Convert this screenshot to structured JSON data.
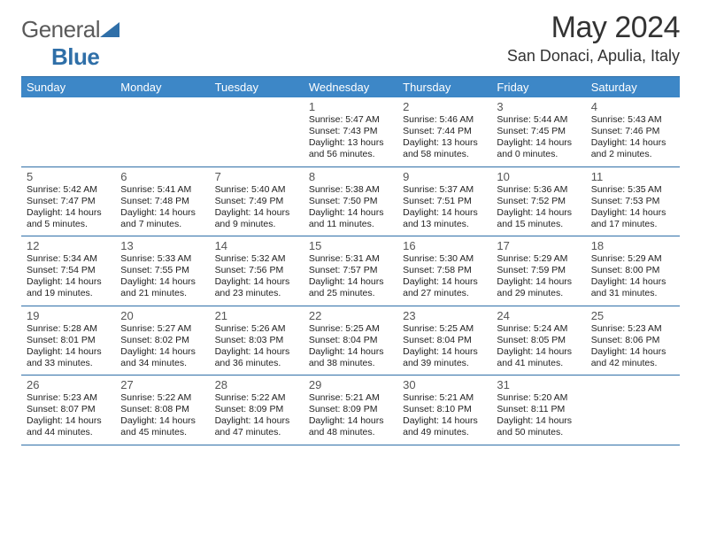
{
  "brand": {
    "name1": "General",
    "name2": "Blue"
  },
  "title": "May 2024",
  "location": "San Donaci, Apulia, Italy",
  "colors": {
    "header_bg": "#3d87c7",
    "header_text": "#ffffff",
    "rule": "#2f6fa8",
    "logo_gray": "#5a5a5a",
    "logo_blue": "#2f6fa8",
    "text": "#222222"
  },
  "day_headers": [
    "Sunday",
    "Monday",
    "Tuesday",
    "Wednesday",
    "Thursday",
    "Friday",
    "Saturday"
  ],
  "weeks": [
    [
      null,
      null,
      null,
      {
        "n": "1",
        "sr": "Sunrise: 5:47 AM",
        "ss": "Sunset: 7:43 PM",
        "dl": "Daylight: 13 hours and 56 minutes."
      },
      {
        "n": "2",
        "sr": "Sunrise: 5:46 AM",
        "ss": "Sunset: 7:44 PM",
        "dl": "Daylight: 13 hours and 58 minutes."
      },
      {
        "n": "3",
        "sr": "Sunrise: 5:44 AM",
        "ss": "Sunset: 7:45 PM",
        "dl": "Daylight: 14 hours and 0 minutes."
      },
      {
        "n": "4",
        "sr": "Sunrise: 5:43 AM",
        "ss": "Sunset: 7:46 PM",
        "dl": "Daylight: 14 hours and 2 minutes."
      }
    ],
    [
      {
        "n": "5",
        "sr": "Sunrise: 5:42 AM",
        "ss": "Sunset: 7:47 PM",
        "dl": "Daylight: 14 hours and 5 minutes."
      },
      {
        "n": "6",
        "sr": "Sunrise: 5:41 AM",
        "ss": "Sunset: 7:48 PM",
        "dl": "Daylight: 14 hours and 7 minutes."
      },
      {
        "n": "7",
        "sr": "Sunrise: 5:40 AM",
        "ss": "Sunset: 7:49 PM",
        "dl": "Daylight: 14 hours and 9 minutes."
      },
      {
        "n": "8",
        "sr": "Sunrise: 5:38 AM",
        "ss": "Sunset: 7:50 PM",
        "dl": "Daylight: 14 hours and 11 minutes."
      },
      {
        "n": "9",
        "sr": "Sunrise: 5:37 AM",
        "ss": "Sunset: 7:51 PM",
        "dl": "Daylight: 14 hours and 13 minutes."
      },
      {
        "n": "10",
        "sr": "Sunrise: 5:36 AM",
        "ss": "Sunset: 7:52 PM",
        "dl": "Daylight: 14 hours and 15 minutes."
      },
      {
        "n": "11",
        "sr": "Sunrise: 5:35 AM",
        "ss": "Sunset: 7:53 PM",
        "dl": "Daylight: 14 hours and 17 minutes."
      }
    ],
    [
      {
        "n": "12",
        "sr": "Sunrise: 5:34 AM",
        "ss": "Sunset: 7:54 PM",
        "dl": "Daylight: 14 hours and 19 minutes."
      },
      {
        "n": "13",
        "sr": "Sunrise: 5:33 AM",
        "ss": "Sunset: 7:55 PM",
        "dl": "Daylight: 14 hours and 21 minutes."
      },
      {
        "n": "14",
        "sr": "Sunrise: 5:32 AM",
        "ss": "Sunset: 7:56 PM",
        "dl": "Daylight: 14 hours and 23 minutes."
      },
      {
        "n": "15",
        "sr": "Sunrise: 5:31 AM",
        "ss": "Sunset: 7:57 PM",
        "dl": "Daylight: 14 hours and 25 minutes."
      },
      {
        "n": "16",
        "sr": "Sunrise: 5:30 AM",
        "ss": "Sunset: 7:58 PM",
        "dl": "Daylight: 14 hours and 27 minutes."
      },
      {
        "n": "17",
        "sr": "Sunrise: 5:29 AM",
        "ss": "Sunset: 7:59 PM",
        "dl": "Daylight: 14 hours and 29 minutes."
      },
      {
        "n": "18",
        "sr": "Sunrise: 5:29 AM",
        "ss": "Sunset: 8:00 PM",
        "dl": "Daylight: 14 hours and 31 minutes."
      }
    ],
    [
      {
        "n": "19",
        "sr": "Sunrise: 5:28 AM",
        "ss": "Sunset: 8:01 PM",
        "dl": "Daylight: 14 hours and 33 minutes."
      },
      {
        "n": "20",
        "sr": "Sunrise: 5:27 AM",
        "ss": "Sunset: 8:02 PM",
        "dl": "Daylight: 14 hours and 34 minutes."
      },
      {
        "n": "21",
        "sr": "Sunrise: 5:26 AM",
        "ss": "Sunset: 8:03 PM",
        "dl": "Daylight: 14 hours and 36 minutes."
      },
      {
        "n": "22",
        "sr": "Sunrise: 5:25 AM",
        "ss": "Sunset: 8:04 PM",
        "dl": "Daylight: 14 hours and 38 minutes."
      },
      {
        "n": "23",
        "sr": "Sunrise: 5:25 AM",
        "ss": "Sunset: 8:04 PM",
        "dl": "Daylight: 14 hours and 39 minutes."
      },
      {
        "n": "24",
        "sr": "Sunrise: 5:24 AM",
        "ss": "Sunset: 8:05 PM",
        "dl": "Daylight: 14 hours and 41 minutes."
      },
      {
        "n": "25",
        "sr": "Sunrise: 5:23 AM",
        "ss": "Sunset: 8:06 PM",
        "dl": "Daylight: 14 hours and 42 minutes."
      }
    ],
    [
      {
        "n": "26",
        "sr": "Sunrise: 5:23 AM",
        "ss": "Sunset: 8:07 PM",
        "dl": "Daylight: 14 hours and 44 minutes."
      },
      {
        "n": "27",
        "sr": "Sunrise: 5:22 AM",
        "ss": "Sunset: 8:08 PM",
        "dl": "Daylight: 14 hours and 45 minutes."
      },
      {
        "n": "28",
        "sr": "Sunrise: 5:22 AM",
        "ss": "Sunset: 8:09 PM",
        "dl": "Daylight: 14 hours and 47 minutes."
      },
      {
        "n": "29",
        "sr": "Sunrise: 5:21 AM",
        "ss": "Sunset: 8:09 PM",
        "dl": "Daylight: 14 hours and 48 minutes."
      },
      {
        "n": "30",
        "sr": "Sunrise: 5:21 AM",
        "ss": "Sunset: 8:10 PM",
        "dl": "Daylight: 14 hours and 49 minutes."
      },
      {
        "n": "31",
        "sr": "Sunrise: 5:20 AM",
        "ss": "Sunset: 8:11 PM",
        "dl": "Daylight: 14 hours and 50 minutes."
      },
      null
    ]
  ]
}
